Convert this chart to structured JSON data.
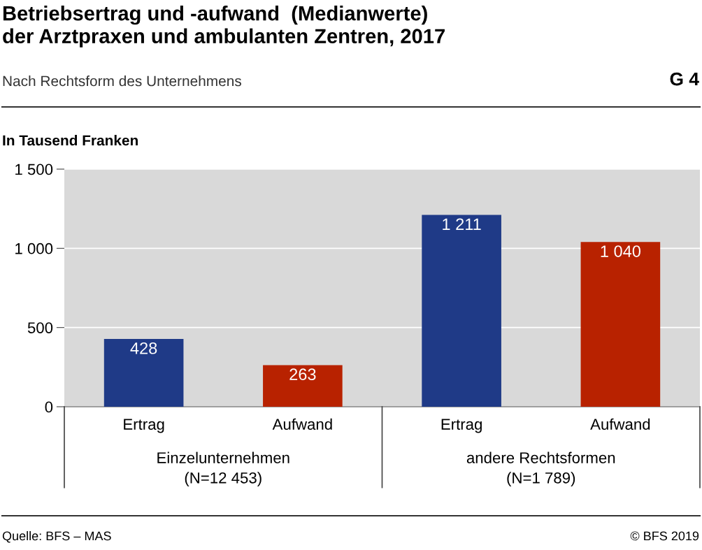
{
  "chart_data": {
    "type": "bar",
    "title": "Betriebsertrag und -aufwand  (Medianwerte)\nder Arztpraxen und ambulanten Zentren, 2017",
    "subtitle": "Nach Rechtsform des Unternehmens",
    "ylabel": "In Tausend Franken",
    "categories": [
      "Ertrag",
      "Aufwand",
      "Ertrag",
      "Aufwand"
    ],
    "values": [
      428,
      263,
      1211,
      1040
    ],
    "colors": [
      "#1f3a87",
      "#b82200",
      "#1f3a87",
      "#b82200"
    ],
    "value_labels": [
      "428",
      "263",
      "1 211",
      "1 040"
    ],
    "ylim": [
      0,
      1500
    ],
    "yticks": [
      0,
      500,
      {
        "value": 1000,
        "label": "1 000"
      },
      {
        "value": 1500,
        "label": "1 500"
      }
    ],
    "grid": "y",
    "annotations": [
      "Einzelunternehmen\n(N=12 453)",
      "andere Rechtsformen\n(N=1 789)",
      "G 4",
      "Quelle: BFS – MAS",
      "© BFS 2019"
    ]
  }
}
